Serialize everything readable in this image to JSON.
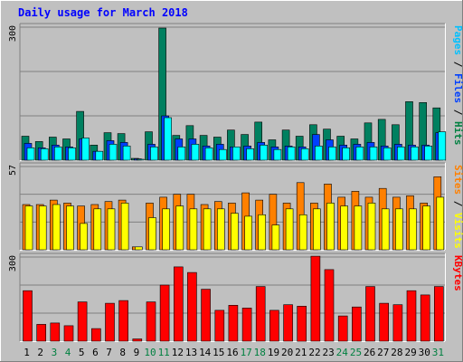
{
  "chart_data": [
    {
      "type": "bar",
      "panel": "pages-files-hits",
      "title": "Daily usage for March 2018",
      "ymax_label": "300",
      "ylim": [
        0,
        300
      ],
      "ylabel_parts": [
        {
          "text": "Pages",
          "color": "#00c0ff"
        },
        {
          "text": " / ",
          "color": "#000000"
        },
        {
          "text": "Files",
          "color": "#0040ff"
        },
        {
          "text": " / ",
          "color": "#000000"
        },
        {
          "text": "Hits",
          "color": "#008040"
        }
      ],
      "categories": [
        "1",
        "2",
        "3",
        "4",
        "5",
        "6",
        "7",
        "8",
        "9",
        "10",
        "11",
        "12",
        "13",
        "14",
        "15",
        "16",
        "17",
        "18",
        "19",
        "20",
        "21",
        "22",
        "23",
        "24",
        "25",
        "26",
        "27",
        "28",
        "29",
        "30",
        "31"
      ],
      "weekend_days": [
        "3",
        "4",
        "10",
        "11",
        "17",
        "18",
        "24",
        "25",
        "31"
      ],
      "series": [
        {
          "name": "Hits",
          "color": "#008060",
          "values": [
            54,
            42,
            52,
            48,
            110,
            34,
            62,
            60,
            4,
            64,
            298,
            56,
            78,
            56,
            52,
            68,
            58,
            86,
            46,
            68,
            54,
            80,
            70,
            54,
            48,
            84,
            92,
            80,
            132,
            130,
            118
          ]
        },
        {
          "name": "Files",
          "color": "#0040ff",
          "values": [
            38,
            28,
            34,
            30,
            48,
            20,
            44,
            40,
            3,
            36,
            100,
            48,
            48,
            32,
            36,
            30,
            32,
            40,
            30,
            32,
            30,
            58,
            46,
            34,
            36,
            40,
            32,
            36,
            34,
            34,
            62
          ]
        },
        {
          "name": "Pages",
          "color": "#00ffff",
          "values": [
            28,
            26,
            30,
            28,
            50,
            20,
            36,
            32,
            2,
            30,
            96,
            30,
            36,
            28,
            24,
            30,
            26,
            34,
            24,
            30,
            26,
            32,
            30,
            28,
            30,
            30,
            28,
            30,
            30,
            32,
            64
          ]
        }
      ]
    },
    {
      "type": "bar",
      "panel": "visits-sites",
      "ymax_label": "57",
      "ylim": [
        0,
        57
      ],
      "ylabel_parts": [
        {
          "text": "Sites",
          "color": "#ff8000"
        },
        {
          "text": " / ",
          "color": "#000000"
        },
        {
          "text": "Visits",
          "color": "#ffff00"
        }
      ],
      "categories": [
        "1",
        "2",
        "3",
        "4",
        "5",
        "6",
        "7",
        "8",
        "9",
        "10",
        "11",
        "12",
        "13",
        "14",
        "15",
        "16",
        "17",
        "18",
        "19",
        "20",
        "21",
        "22",
        "23",
        "24",
        "25",
        "26",
        "27",
        "28",
        "29",
        "30",
        "31"
      ],
      "series": [
        {
          "name": "Visits",
          "color": "#ff8000",
          "values": [
            31,
            31,
            34,
            32,
            30,
            31,
            33,
            34,
            2,
            32,
            36,
            38,
            38,
            31,
            33,
            32,
            39,
            34,
            38,
            32,
            46,
            32,
            45,
            36,
            40,
            36,
            42,
            36,
            37,
            32,
            50
          ]
        },
        {
          "name": "Sites",
          "color": "#ffff00",
          "values": [
            30,
            30,
            31,
            30,
            18,
            28,
            28,
            32,
            2,
            22,
            28,
            30,
            28,
            28,
            28,
            25,
            23,
            24,
            17,
            28,
            24,
            28,
            32,
            30,
            30,
            32,
            28,
            28,
            28,
            30,
            36
          ]
        }
      ]
    },
    {
      "type": "bar",
      "panel": "kbytes",
      "ymax_label": "300",
      "ylim": [
        0,
        300
      ],
      "ylabel_parts": [
        {
          "text": "KBytes",
          "color": "#ff0000"
        }
      ],
      "categories": [
        "1",
        "2",
        "3",
        "4",
        "5",
        "6",
        "7",
        "8",
        "9",
        "10",
        "11",
        "12",
        "13",
        "14",
        "15",
        "16",
        "17",
        "18",
        "19",
        "20",
        "21",
        "22",
        "23",
        "24",
        "25",
        "26",
        "27",
        "28",
        "29",
        "30",
        "31"
      ],
      "series": [
        {
          "name": "KBytes",
          "color": "#ff0000",
          "values": [
            180,
            60,
            65,
            55,
            140,
            45,
            135,
            145,
            8,
            140,
            200,
            265,
            245,
            185,
            110,
            128,
            118,
            195,
            110,
            130,
            125,
            303,
            255,
            90,
            122,
            195,
            135,
            130,
            180,
            165,
            195
          ]
        }
      ]
    }
  ]
}
